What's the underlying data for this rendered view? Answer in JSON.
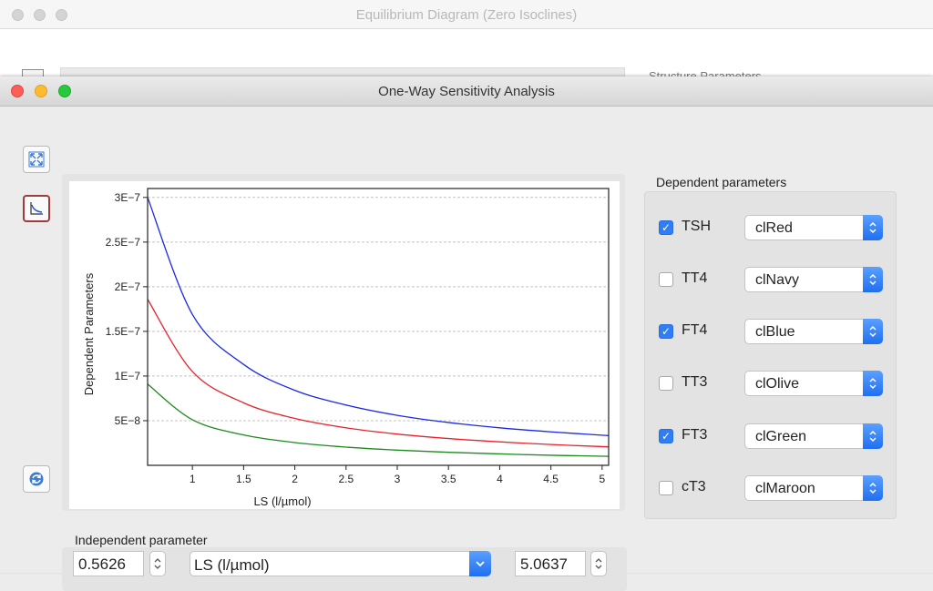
{
  "background_window": {
    "title": "Equilibrium Diagram (Zero Isoclines)",
    "structure_label": "Structure Parameters"
  },
  "window": {
    "title": "One-Way Sensitivity Analysis"
  },
  "toolbar": {
    "icons": [
      "fullscreen-icon",
      "chart-icon",
      "refresh-icon"
    ]
  },
  "dependent_parameters": {
    "title": "Dependent parameters",
    "rows": [
      {
        "label": "TSH",
        "checked": true,
        "color": "clRed"
      },
      {
        "label": "TT4",
        "checked": false,
        "color": "clNavy"
      },
      {
        "label": "FT4",
        "checked": true,
        "color": "clBlue"
      },
      {
        "label": "TT3",
        "checked": false,
        "color": "clOlive"
      },
      {
        "label": "FT3",
        "checked": true,
        "color": "clGreen"
      },
      {
        "label": "cT3",
        "checked": false,
        "color": "clMaroon"
      }
    ]
  },
  "independent_parameter": {
    "title": "Independent parameter",
    "min": "0.5626",
    "selected": "LS (l/µmol)",
    "max": "5.0637"
  },
  "colors": {
    "accent": "#2f7ef6",
    "clRed": "#e8222a",
    "clBlue": "#1c28e8",
    "clGreen": "#1d8a1d"
  },
  "chart_data": {
    "type": "line",
    "xlabel": "LS (l/µmol)",
    "ylabel": "Dependent Parameters",
    "xlim": [
      0.5626,
      5.0637
    ],
    "ylim": [
      0,
      3.1e-07
    ],
    "grid": "horizontal dashed",
    "x_ticks": [
      "1",
      "1.5",
      "2",
      "2.5",
      "3",
      "3.5",
      "4",
      "4.5",
      "5"
    ],
    "y_ticks": [
      "5E−8",
      "1E−7",
      "1.5E−7",
      "2E−7",
      "2.5E−7",
      "3E−7"
    ],
    "series": [
      {
        "color": "#1c28e8",
        "x": [
          0.5626,
          1,
          1.5,
          2,
          2.5,
          3,
          3.5,
          4,
          4.5,
          5.0637
        ],
        "y": [
          3e-07,
          1.69e-07,
          1.13e-07,
          8.4e-08,
          6.75e-08,
          5.6e-08,
          4.8e-08,
          4.2e-08,
          3.75e-08,
          3.33e-08
        ]
      },
      {
        "color": "#e8222a",
        "x": [
          0.5626,
          1,
          1.5,
          2,
          2.5,
          3,
          3.5,
          4,
          4.5,
          5.0637
        ],
        "y": [
          1.86e-07,
          1.05e-07,
          7e-08,
          5.25e-08,
          4.2e-08,
          3.5e-08,
          3e-08,
          2.63e-08,
          2.33e-08,
          2.07e-08
        ]
      },
      {
        "color": "#1d8a1d",
        "x": [
          0.5626,
          1,
          1.5,
          2,
          2.5,
          3,
          3.5,
          4,
          4.5,
          5.0637
        ],
        "y": [
          9.1e-08,
          5.1e-08,
          3.4e-08,
          2.55e-08,
          2.04e-08,
          1.7e-08,
          1.46e-08,
          1.28e-08,
          1.13e-08,
          1.01e-08
        ]
      }
    ]
  }
}
